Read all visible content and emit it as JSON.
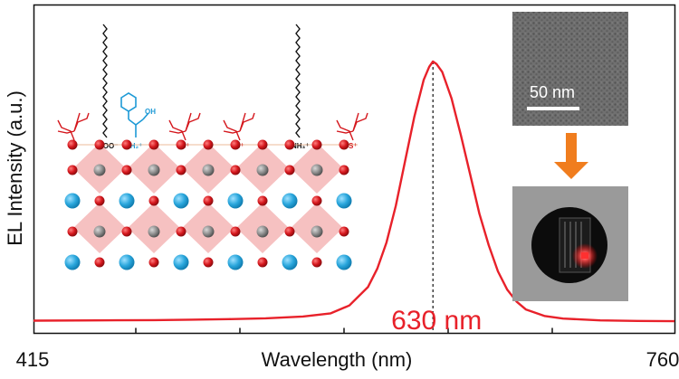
{
  "chart_data": {
    "type": "line",
    "xlabel": "Wavelength (nm)",
    "ylabel": "EL Intensity (a.u.)",
    "x_tick_labels": [
      "415",
      "760"
    ],
    "xlim": [
      415,
      760
    ],
    "ylim": [
      0,
      1.0
    ],
    "grid": false,
    "series": [
      {
        "color": "#e8212a",
        "x": [
          415,
          450,
          480,
          500,
          520,
          540,
          560,
          575,
          585,
          595,
          600,
          605,
          610,
          615,
          620,
          625,
          628,
          630,
          632,
          635,
          640,
          645,
          650,
          655,
          660,
          665,
          670,
          675,
          680,
          690,
          700,
          720,
          740,
          760
        ],
        "y": [
          0.012,
          0.013,
          0.014,
          0.016,
          0.018,
          0.021,
          0.028,
          0.04,
          0.07,
          0.14,
          0.21,
          0.31,
          0.45,
          0.62,
          0.79,
          0.93,
          0.98,
          1.0,
          0.99,
          0.96,
          0.86,
          0.72,
          0.57,
          0.42,
          0.3,
          0.2,
          0.13,
          0.085,
          0.055,
          0.03,
          0.02,
          0.013,
          0.011,
          0.01
        ]
      }
    ],
    "annotations": [
      {
        "text": "630 nm",
        "x": 630,
        "color": "#e8212a",
        "style": "dashed vertical marker at peak"
      }
    ]
  },
  "insets": {
    "tem_image": {
      "scale_bar_label": "50 nm"
    },
    "device_photo": {
      "glow_color": "#ff2a2a"
    },
    "arrow_color": "#f07d1e",
    "structure": {
      "ligand_labels": [
        "S⁺",
        "COO⁻",
        "NH₂⁺",
        "OH",
        "S⁺",
        "S⁺",
        "NH₃⁺",
        "S⁺"
      ],
      "octahedron_color": "#f4b6b6",
      "x_site_color": "#d4161c",
      "b_site_color": "#8c8c8c",
      "a_site_color": "#29a6dc",
      "zwitterion_color": "#1e9ad6"
    }
  }
}
